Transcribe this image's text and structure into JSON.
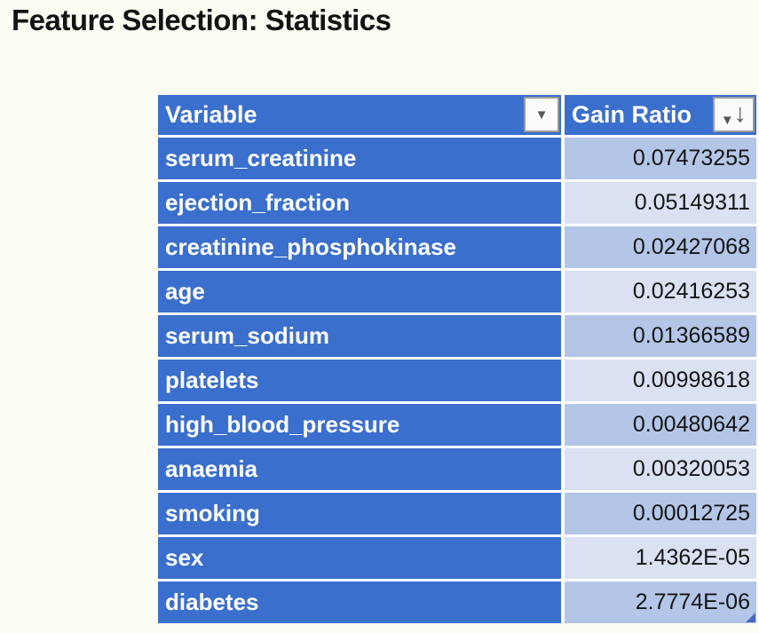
{
  "page": {
    "title": "Feature Selection: Statistics",
    "background_color": "#FDFDF4"
  },
  "icons": {
    "filter_dropdown": "▼",
    "sort_descending_arrow": "↓"
  },
  "colors": {
    "header_blue": "#3B6FCD",
    "band_dark": "#B4C6E7",
    "band_light": "#D9E1F2",
    "separator_white": "#FFFFFF",
    "value_text": "#141414",
    "header_text": "#FFFFFF",
    "resize_handle_blue": "#4A69BD"
  },
  "table": {
    "columns": [
      {
        "label": "Variable",
        "filter": "dropdown"
      },
      {
        "label": "Gain Ratio",
        "filter": "dropdown-sorted-descending"
      }
    ],
    "rows": [
      {
        "variable": "serum_creatinine",
        "gain_ratio": "0.07473255"
      },
      {
        "variable": "ejection_fraction",
        "gain_ratio": "0.05149311"
      },
      {
        "variable": "creatinine_phosphokinase",
        "gain_ratio": "0.02427068"
      },
      {
        "variable": "age",
        "gain_ratio": "0.02416253"
      },
      {
        "variable": "serum_sodium",
        "gain_ratio": "0.01366589"
      },
      {
        "variable": "platelets",
        "gain_ratio": "0.00998618"
      },
      {
        "variable": "high_blood_pressure",
        "gain_ratio": "0.00480642"
      },
      {
        "variable": "anaemia",
        "gain_ratio": "0.00320053"
      },
      {
        "variable": "smoking",
        "gain_ratio": "0.00012725"
      },
      {
        "variable": "sex",
        "gain_ratio": "1.4362E-05"
      },
      {
        "variable": "diabetes",
        "gain_ratio": "2.7774E-06"
      }
    ]
  }
}
